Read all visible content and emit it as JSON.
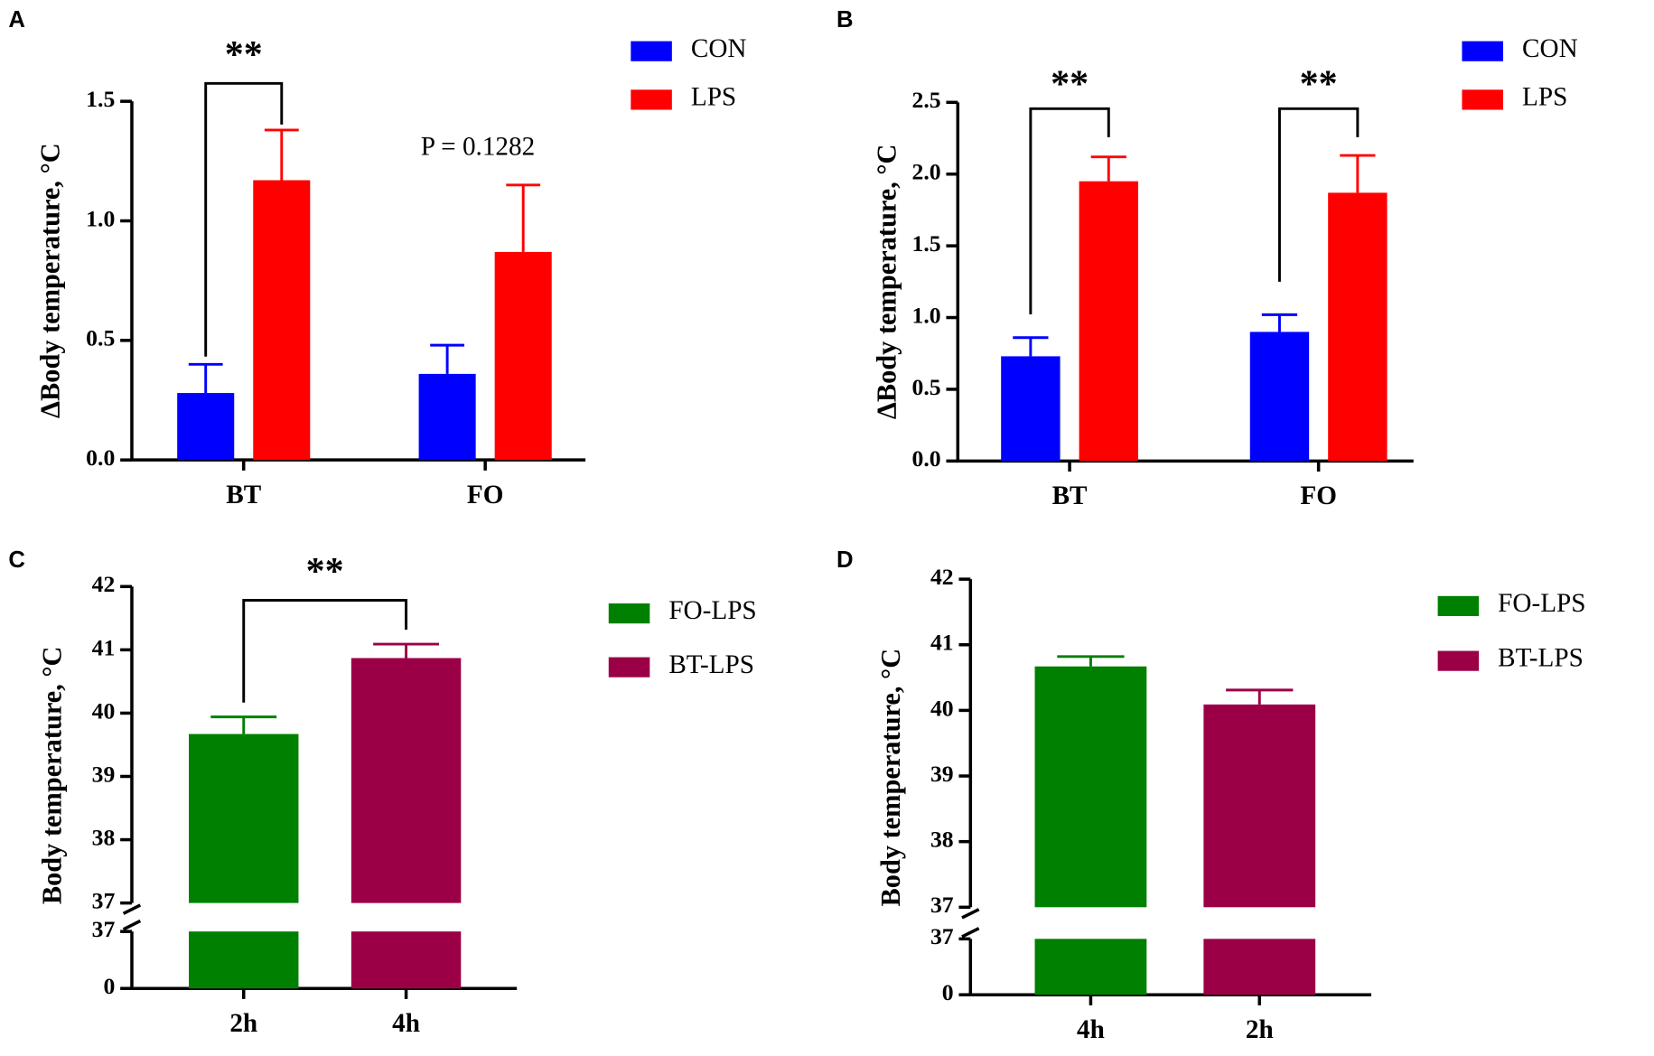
{
  "chart_data": [
    {
      "type": "bar",
      "panel_label": "A",
      "y_label": "ΔBody temperature, °C",
      "categories": [
        "BT",
        "FO"
      ],
      "series": [
        {
          "name": "CON",
          "color": "#0000ff",
          "values": [
            0.28,
            0.36
          ],
          "errors": [
            0.12,
            0.12
          ]
        },
        {
          "name": "LPS",
          "color": "#ff0000",
          "values": [
            1.17,
            0.87
          ],
          "errors": [
            0.21,
            0.28
          ]
        }
      ],
      "ylim": [
        0,
        1.5
      ],
      "yticks": [
        {
          "value": 0,
          "label": "0.0"
        },
        0.5,
        {
          "value": 1,
          "label": "1.0"
        },
        1.5
      ],
      "annotations": [
        "**",
        "P = 0.1282"
      ]
    },
    {
      "type": "bar",
      "panel_label": "B",
      "y_label": "ΔBody temperature, °C",
      "categories": [
        "BT",
        "FO"
      ],
      "series": [
        {
          "name": "CON",
          "color": "#0000ff",
          "values": [
            0.73,
            0.9
          ],
          "errors": [
            0.13,
            0.12
          ]
        },
        {
          "name": "LPS",
          "color": "#ff0000",
          "values": [
            1.95,
            1.87
          ],
          "errors": [
            0.17,
            0.26
          ]
        }
      ],
      "ylim": [
        0,
        2.5
      ],
      "yticks": [
        {
          "value": 0,
          "label": "0.0"
        },
        0.5,
        {
          "value": 1,
          "label": "1.0"
        },
        1.5,
        {
          "value": 2,
          "label": "2.0"
        },
        2.5
      ],
      "annotations": [
        "**",
        "**"
      ]
    },
    {
      "type": "bar",
      "panel_label": "C",
      "y_label": "Body temperature, °C",
      "categories": [
        "2h",
        "4h"
      ],
      "series": [
        {
          "name": "FO-LPS",
          "color": "#008000",
          "values": [
            39.67,
            null
          ],
          "errors": [
            0.27,
            null
          ]
        },
        {
          "name": "BT-LPS",
          "color": "#9b0047",
          "values": [
            null,
            40.87
          ],
          "errors": [
            null,
            0.22
          ]
        }
      ],
      "ylim": [
        37,
        42
      ],
      "yticks": [
        37,
        38,
        39,
        40,
        41,
        42
      ],
      "y_lower_lim": [
        0,
        37
      ],
      "y_lower_ticks": [
        0,
        37
      ],
      "annotations": [
        "**"
      ]
    },
    {
      "type": "bar",
      "panel_label": "D",
      "y_label": "Body temperature, °C",
      "categories": [
        "4h",
        "2h"
      ],
      "series": [
        {
          "name": "FO-LPS",
          "color": "#008000",
          "values": [
            40.67,
            null
          ],
          "errors": [
            0.15,
            null
          ]
        },
        {
          "name": "BT-LPS",
          "color": "#9b0047",
          "values": [
            null,
            40.09
          ],
          "errors": [
            null,
            0.22
          ]
        }
      ],
      "ylim": [
        37,
        42
      ],
      "yticks": [
        37,
        38,
        39,
        40,
        41,
        42
      ],
      "y_lower_lim": [
        0,
        37
      ],
      "y_lower_ticks": [
        0,
        37
      ],
      "annotations": []
    }
  ]
}
